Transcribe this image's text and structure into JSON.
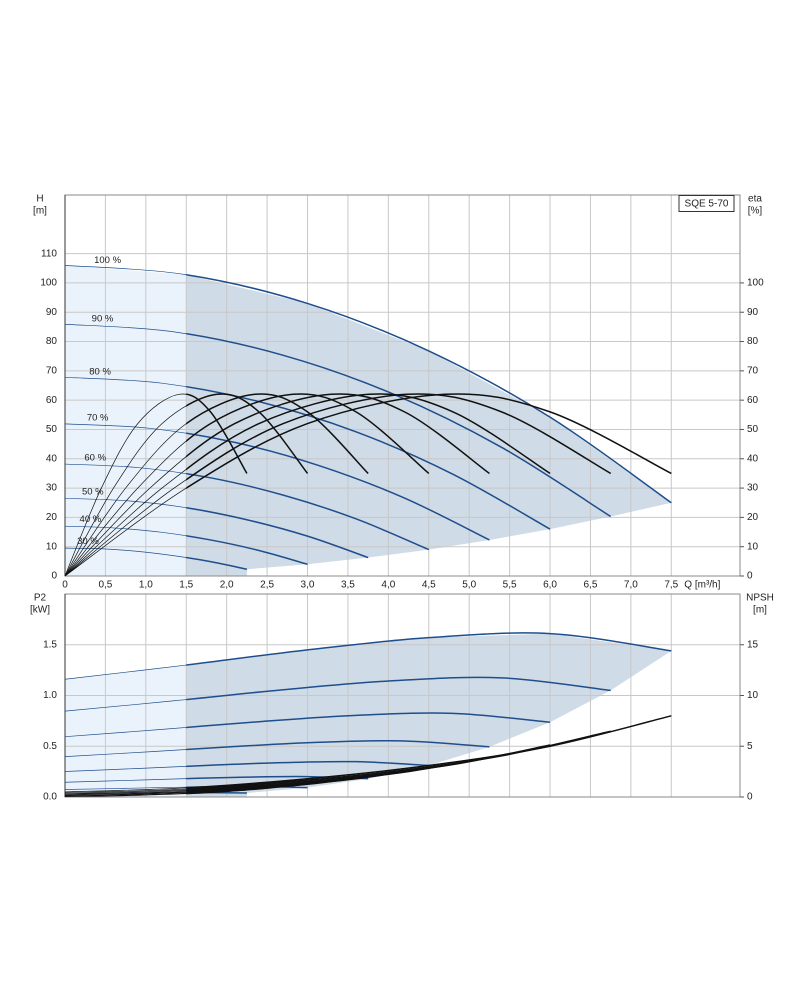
{
  "chart_data": [
    {
      "type": "line",
      "title": "SQE 5-70",
      "y_label": "H",
      "y_unit": "[m]",
      "y2_label": "eta",
      "y2_unit": "[%]",
      "x_label": "Q [m³/h]",
      "xlim": [
        0,
        8.35
      ],
      "ylim": [
        0,
        130
      ],
      "y2lim": [
        0,
        130
      ],
      "grid": true,
      "shaded_from": 1.5,
      "xticks": [
        {
          "value": 0,
          "label": "0"
        },
        {
          "value": 0.5,
          "label": "0,5"
        },
        {
          "value": 1,
          "label": "1,0"
        },
        {
          "value": 1.5,
          "label": "1,5"
        },
        {
          "value": 2,
          "label": "2,0"
        },
        {
          "value": 2.5,
          "label": "2,5"
        },
        {
          "value": 3,
          "label": "3,0"
        },
        {
          "value": 3.5,
          "label": "3,5"
        },
        {
          "value": 4,
          "label": "4,0"
        },
        {
          "value": 4.5,
          "label": "4,5"
        },
        {
          "value": 5,
          "label": "5,0"
        },
        {
          "value": 5.5,
          "label": "5,5"
        },
        {
          "value": 6,
          "label": "6,0"
        },
        {
          "value": 6.5,
          "label": "6,5"
        },
        {
          "value": 7,
          "label": "7,0"
        },
        {
          "value": 7.5,
          "label": "7,5"
        }
      ],
      "yticks": [
        0,
        10,
        20,
        30,
        40,
        50,
        60,
        70,
        80,
        90,
        100,
        110
      ],
      "y2ticks": [
        0,
        10,
        20,
        30,
        40,
        50,
        60,
        70,
        80,
        90,
        100
      ],
      "series": [
        {
          "name": "100 %",
          "color": "#1f4e8c",
          "x": [
            0,
            1.5,
            3,
            4.5,
            6,
            7.5
          ],
          "values": [
            106,
            102.8,
            93,
            76.8,
            54.2,
            25
          ]
        },
        {
          "name": "90 %",
          "color": "#1f4e8c",
          "x": [
            0,
            1.35,
            2.7,
            4.05,
            5.4,
            6.75
          ],
          "values": [
            85.9,
            83.3,
            75.3,
            62.2,
            43.9,
            20.3
          ]
        },
        {
          "name": "80 %",
          "color": "#1f4e8c",
          "x": [
            0,
            1.2,
            2.4,
            3.6,
            4.8,
            6.0
          ],
          "values": [
            67.8,
            65.8,
            59.5,
            49.2,
            34.7,
            16
          ]
        },
        {
          "name": "70 %",
          "color": "#1f4e8c",
          "x": [
            0,
            1.05,
            2.1,
            3.15,
            4.2,
            5.25
          ],
          "values": [
            51.9,
            50.4,
            45.6,
            37.6,
            26.6,
            12.3
          ]
        },
        {
          "name": "60 %",
          "color": "#1f4e8c",
          "x": [
            0,
            0.9,
            1.8,
            2.7,
            3.6,
            4.5
          ],
          "values": [
            38.2,
            37,
            33.5,
            27.6,
            19.5,
            9
          ]
        },
        {
          "name": "50 %",
          "color": "#1f4e8c",
          "x": [
            0,
            0.75,
            1.5,
            2.25,
            3,
            3.75
          ],
          "values": [
            26.5,
            25.7,
            23.3,
            19.2,
            13.6,
            6.3
          ]
        },
        {
          "name": "40 %",
          "color": "#1f4e8c",
          "x": [
            0,
            0.6,
            1.2,
            1.8,
            2.4,
            3.0
          ],
          "values": [
            17,
            16.4,
            14.9,
            12.3,
            8.7,
            4
          ]
        },
        {
          "name": "30 %",
          "color": "#1f4e8c",
          "x": [
            0,
            0.45,
            0.9,
            1.35,
            1.8,
            2.25
          ],
          "values": [
            9.5,
            9.3,
            8.4,
            6.9,
            4.9,
            2.3
          ]
        },
        {
          "color": "#111111",
          "axis": "y2",
          "x": [
            0,
            1.5,
            3,
            4.7,
            6,
            7.5
          ],
          "values": [
            0,
            30,
            52,
            62,
            56,
            35
          ]
        },
        {
          "color": "#111111",
          "axis": "y2",
          "x": [
            0,
            1.35,
            2.7,
            4.23,
            5.4,
            6.75
          ],
          "values": [
            0,
            30,
            52,
            62,
            56,
            35
          ]
        },
        {
          "color": "#111111",
          "axis": "y2",
          "x": [
            0,
            1.2,
            2.4,
            3.76,
            4.8,
            6.0
          ],
          "values": [
            0,
            30,
            52,
            62,
            56,
            35
          ]
        },
        {
          "color": "#111111",
          "axis": "y2",
          "x": [
            0,
            1.05,
            2.1,
            3.29,
            4.2,
            5.25
          ],
          "values": [
            0,
            30,
            52,
            62,
            56,
            35
          ]
        },
        {
          "color": "#111111",
          "axis": "y2",
          "x": [
            0,
            0.9,
            1.8,
            2.82,
            3.6,
            4.5
          ],
          "values": [
            0,
            30,
            52,
            62,
            56,
            35
          ]
        },
        {
          "color": "#111111",
          "axis": "y2",
          "x": [
            0,
            0.75,
            1.5,
            2.35,
            3,
            3.75
          ],
          "values": [
            0,
            30,
            52,
            62,
            56,
            35
          ]
        },
        {
          "color": "#111111",
          "axis": "y2",
          "x": [
            0,
            0.6,
            1.2,
            1.88,
            2.4,
            3.0
          ],
          "values": [
            0,
            30,
            52,
            62,
            56,
            35
          ]
        },
        {
          "color": "#111111",
          "axis": "y2",
          "x": [
            0,
            0.45,
            0.9,
            1.41,
            1.8,
            2.25
          ],
          "values": [
            0,
            30,
            52,
            62,
            56,
            35
          ]
        }
      ]
    },
    {
      "type": "line",
      "y_label": "P2",
      "y_unit": "[kW]",
      "y2_label": "NPSH",
      "y2_unit": "[m]",
      "xlim": [
        0,
        8.35
      ],
      "ylim": [
        0,
        2
      ],
      "y2lim": [
        0,
        20
      ],
      "grid": true,
      "shaded_from": 1.5,
      "yticks": [
        {
          "value": 0,
          "label": "0.0"
        },
        {
          "value": 0.5,
          "label": "0.5"
        },
        {
          "value": 1,
          "label": "1.0"
        },
        {
          "value": 1.5,
          "label": "1.5"
        }
      ],
      "y2ticks": [
        0,
        5,
        10,
        15
      ],
      "series": [
        {
          "color": "#1f4e8c",
          "x": [
            0,
            1.5,
            3,
            4.5,
            6,
            7.5
          ],
          "values": [
            1.16,
            1.3,
            1.45,
            1.57,
            1.61,
            1.44
          ]
        },
        {
          "color": "#1f4e8c",
          "x": [
            0,
            1.35,
            2.7,
            4.05,
            5.4,
            6.75
          ],
          "values": [
            0.846,
            0.948,
            1.057,
            1.145,
            1.174,
            1.05
          ]
        },
        {
          "color": "#1f4e8c",
          "x": [
            0,
            1.2,
            2.4,
            3.6,
            4.8,
            6.0
          ],
          "values": [
            0.594,
            0.666,
            0.742,
            0.804,
            0.824,
            0.737
          ]
        },
        {
          "color": "#1f4e8c",
          "x": [
            0,
            1.05,
            2.1,
            3.15,
            4.2,
            5.25
          ],
          "values": [
            0.398,
            0.446,
            0.497,
            0.539,
            0.552,
            0.494
          ]
        },
        {
          "color": "#1f4e8c",
          "x": [
            0,
            0.9,
            1.8,
            2.7,
            3.6,
            4.5
          ],
          "values": [
            0.251,
            0.281,
            0.313,
            0.339,
            0.348,
            0.311
          ]
        },
        {
          "color": "#1f4e8c",
          "x": [
            0,
            0.75,
            1.5,
            2.25,
            3,
            3.75
          ],
          "values": [
            0.145,
            0.163,
            0.181,
            0.196,
            0.201,
            0.18
          ]
        },
        {
          "color": "#1f4e8c",
          "x": [
            0,
            0.6,
            1.2,
            1.8,
            2.4,
            3.0
          ],
          "values": [
            0.074,
            0.083,
            0.093,
            0.1,
            0.103,
            0.092
          ]
        },
        {
          "color": "#1f4e8c",
          "x": [
            0,
            0.45,
            0.9,
            1.35,
            1.8,
            2.25
          ],
          "values": [
            0.031,
            0.035,
            0.039,
            0.042,
            0.043,
            0.039
          ]
        },
        {
          "color": "#111111",
          "axis": "y2",
          "x": [
            0,
            1.5,
            3,
            4.5,
            6,
            7.5
          ],
          "values": [
            0.5,
            0.9,
            1.8,
            3.1,
            5.0,
            8.0
          ]
        },
        {
          "color": "#111111",
          "axis": "y2",
          "x": [
            0,
            1.35,
            2.7,
            4.05,
            5.4,
            6.75
          ],
          "values": [
            0.41,
            0.73,
            1.46,
            2.51,
            4.05,
            6.48
          ]
        },
        {
          "color": "#111111",
          "axis": "y2",
          "x": [
            0,
            1.2,
            2.4,
            3.6,
            4.8,
            6.0
          ],
          "values": [
            0.32,
            0.58,
            1.15,
            1.98,
            3.2,
            5.12
          ]
        },
        {
          "color": "#111111",
          "axis": "y2",
          "x": [
            0,
            1.05,
            2.1,
            3.15,
            4.2,
            5.25
          ],
          "values": [
            0.25,
            0.44,
            0.88,
            1.52,
            2.45,
            3.92
          ]
        },
        {
          "color": "#111111",
          "axis": "y2",
          "x": [
            0,
            0.9,
            1.8,
            2.7,
            3.6,
            4.5
          ],
          "values": [
            0.18,
            0.32,
            0.65,
            1.12,
            1.8,
            2.88
          ]
        },
        {
          "color": "#111111",
          "axis": "y2",
          "x": [
            0,
            0.75,
            1.5,
            2.25,
            3,
            3.75
          ],
          "values": [
            0.13,
            0.23,
            0.45,
            0.78,
            1.25,
            2.0
          ]
        },
        {
          "color": "#111111",
          "axis": "y2",
          "x": [
            0,
            0.6,
            1.2,
            1.8,
            2.4,
            3.0
          ],
          "values": [
            0.08,
            0.14,
            0.29,
            0.5,
            0.8,
            1.28
          ]
        },
        {
          "color": "#111111",
          "axis": "y2",
          "x": [
            0,
            0.45,
            0.9,
            1.35,
            1.8,
            2.25
          ],
          "values": [
            0.05,
            0.08,
            0.16,
            0.28,
            0.45,
            0.72
          ]
        }
      ]
    }
  ]
}
